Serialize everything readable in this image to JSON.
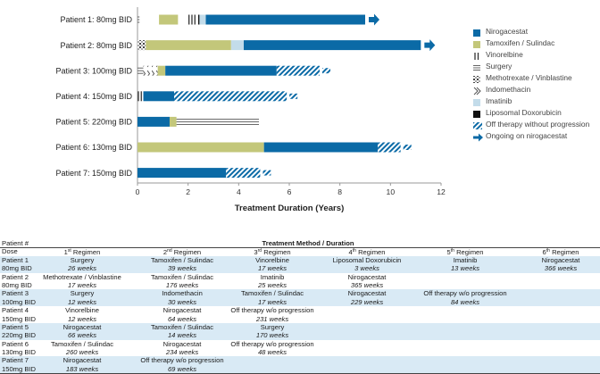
{
  "colors": {
    "nirogacestat": "#0b6aa6",
    "tamoxifen": "#c3c77a",
    "imatinib": "#c3dcea",
    "doxorubicin": "#111111",
    "line": "#555555",
    "highlight": "#d9eaf5"
  },
  "chart_data": {
    "type": "bar",
    "orientation": "horizontal",
    "title": "",
    "xlabel": "Treatment Duration (Years)",
    "xlim": [
      0,
      12
    ],
    "xticks": [
      "0",
      "2",
      "4",
      "6",
      "8",
      "10",
      "12"
    ],
    "patients": [
      {
        "label": "Patient 1: 80mg BID",
        "ongoing": true,
        "segments": [
          {
            "treatment": "Surgery",
            "start": 0,
            "end": 0.08
          },
          {
            "treatment": "Tamoxifen / Sulindac",
            "start": 0.85,
            "end": 1.6
          },
          {
            "treatment": "Vinorelbine",
            "start": 2.0,
            "end": 2.35
          },
          {
            "treatment": "Liposomal Doxorubicin",
            "start": 2.4,
            "end": 2.45
          },
          {
            "treatment": "Imatinib",
            "start": 2.45,
            "end": 2.7
          },
          {
            "treatment": "Nirogacestat",
            "start": 2.7,
            "end": 9.0
          }
        ]
      },
      {
        "label": "Patient 2: 80mg BID",
        "ongoing": true,
        "segments": [
          {
            "treatment": "Methotrexate / Vinblastine",
            "start": 0,
            "end": 0.33
          },
          {
            "treatment": "Tamoxifen / Sulindac",
            "start": 0.33,
            "end": 3.7
          },
          {
            "treatment": "Imatinib",
            "start": 3.7,
            "end": 4.2
          },
          {
            "treatment": "Nirogacestat",
            "start": 4.2,
            "end": 11.2
          }
        ]
      },
      {
        "label": "Patient 3: 100mg BID",
        "ongoing": false,
        "segments": [
          {
            "treatment": "Surgery",
            "start": 0,
            "end": 0.23
          },
          {
            "treatment": "Indomethacin",
            "start": 0.23,
            "end": 0.8
          },
          {
            "treatment": "Tamoxifen / Sulindac",
            "start": 0.8,
            "end": 1.1
          },
          {
            "treatment": "Nirogacestat",
            "start": 1.1,
            "end": 5.5
          },
          {
            "treatment": "Off therapy without progression",
            "start": 5.5,
            "end": 7.2
          }
        ]
      },
      {
        "label": "Patient 4: 150mg BID",
        "ongoing": false,
        "segments": [
          {
            "treatment": "Vinorelbine",
            "start": 0,
            "end": 0.23
          },
          {
            "treatment": "Nirogacestat",
            "start": 0.23,
            "end": 1.45
          },
          {
            "treatment": "Off therapy without progression",
            "start": 1.45,
            "end": 5.9
          }
        ]
      },
      {
        "label": "Patient 5: 220mg BID",
        "ongoing": false,
        "segments": [
          {
            "treatment": "Nirogacestat",
            "start": 0,
            "end": 1.27
          },
          {
            "treatment": "Tamoxifen / Sulindac",
            "start": 1.27,
            "end": 1.54
          },
          {
            "treatment": "Surgery",
            "start": 1.54,
            "end": 4.8
          }
        ]
      },
      {
        "label": "Patient 6: 130mg BID",
        "ongoing": false,
        "segments": [
          {
            "treatment": "Tamoxifen / Sulindac",
            "start": 0,
            "end": 5.0
          },
          {
            "treatment": "Nirogacestat",
            "start": 5.0,
            "end": 9.5
          },
          {
            "treatment": "Off therapy without progression",
            "start": 9.5,
            "end": 10.4
          }
        ]
      },
      {
        "label": "Patient 7: 150mg BID",
        "ongoing": false,
        "segments": [
          {
            "treatment": "Nirogacestat",
            "start": 0,
            "end": 3.5
          },
          {
            "treatment": "Off therapy without progression",
            "start": 3.5,
            "end": 4.85
          }
        ]
      }
    ]
  },
  "legend": [
    {
      "label": "Nirogacestat",
      "key": "nirogacestat"
    },
    {
      "label": "Tamoxifen / Sulindac",
      "key": "tamoxifen"
    },
    {
      "label": "Vinorelbine",
      "key": "vinorelbine"
    },
    {
      "label": "Surgery",
      "key": "surgery"
    },
    {
      "label": "Methotrexate / Vinblastine",
      "key": "methotrexate"
    },
    {
      "label": "Indomethacin",
      "key": "indomethacin"
    },
    {
      "label": "Imatinib",
      "key": "imatinib"
    },
    {
      "label": "Liposomal Doxorubicin",
      "key": "doxorubicin"
    },
    {
      "label": "Off therapy without progression",
      "key": "offtherapy"
    },
    {
      "label": "Ongoing on nirogacestat",
      "key": "ongoing"
    }
  ],
  "table": {
    "title": "Treatment Method / Duration",
    "col0_header": "Patient #",
    "col0_subheader": "Dose",
    "regimen_nums": [
      "1",
      "2",
      "3",
      "4",
      "5",
      "6"
    ],
    "regimen_sups": [
      "st",
      "nd",
      "rd",
      "th",
      "th",
      "th"
    ],
    "regimen_word": "Regimen",
    "rows": [
      {
        "patient": "Patient 1",
        "dose": "80mg BID",
        "highlight": true,
        "treatments": [
          "Surgery",
          "Tamoxifen / Sulindac",
          "Vinorelbine",
          "Liposomal Doxorubicin",
          "Imatinib",
          "Nirogacestat"
        ],
        "durations": [
          "26 weeks",
          "39 weeks",
          "17 weeks",
          "3 weeks",
          "13 weeks",
          "366 weeks"
        ]
      },
      {
        "patient": "Patient 2",
        "dose": "80mg BID",
        "highlight": false,
        "treatments": [
          "Methotrexate / Vinblastine",
          "Tamoxifen / Sulindac",
          "Imatinib",
          "Nirogacestat",
          "",
          ""
        ],
        "durations": [
          "17 weeks",
          "176 weeks",
          "25 weeks",
          "365 weeks",
          "",
          ""
        ]
      },
      {
        "patient": "Patient 3",
        "dose": "100mg BID",
        "highlight": true,
        "treatments": [
          "Surgery",
          "Indomethacin",
          "Tamoxifen / Sulindac",
          "Nirogacestat",
          "Off therapy w/o progression",
          ""
        ],
        "durations": [
          "12 weeks",
          "30 weeks",
          "17 weeks",
          "229 weeks",
          "84 weeks",
          ""
        ]
      },
      {
        "patient": "Patient 4",
        "dose": "150mg BID",
        "highlight": false,
        "treatments": [
          "Vinorelbine",
          "Nirogacestat",
          "Off therapy w/o progression",
          "",
          "",
          ""
        ],
        "durations": [
          "12 weeks",
          "64 weeks",
          "231 weeks",
          "",
          "",
          ""
        ]
      },
      {
        "patient": "Patient 5",
        "dose": "220mg BID",
        "highlight": true,
        "treatments": [
          "Nirogacestat",
          "Tamoxifen / Sulindac",
          "Surgery",
          "",
          "",
          ""
        ],
        "durations": [
          "66 weeks",
          "14 weeks",
          "170 weeks",
          "",
          "",
          ""
        ]
      },
      {
        "patient": "Patient 6",
        "dose": "130mg BID",
        "highlight": false,
        "treatments": [
          "Tamoxifen / Sulindac",
          "Nirogacestat",
          "Off therapy w/o progression",
          "",
          "",
          ""
        ],
        "durations": [
          "260 weeks",
          "234 weeks",
          "48 weeks",
          "",
          "",
          ""
        ]
      },
      {
        "patient": "Patient 7",
        "dose": "150mg BID",
        "highlight": true,
        "treatments": [
          "Nirogacestat",
          "Off therapy w/o progression",
          "",
          "",
          "",
          ""
        ],
        "durations": [
          "183 weeks",
          "69 weeks",
          "",
          "",
          "",
          ""
        ]
      }
    ]
  }
}
